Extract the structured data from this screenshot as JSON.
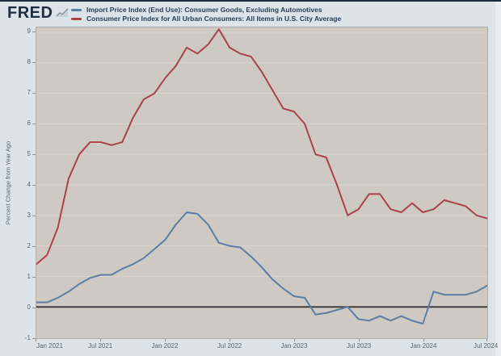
{
  "header": {
    "logo_text": "FRED",
    "logo_icon": "area-chart-icon"
  },
  "y_axis": {
    "title": "Percent Change from Year Ago"
  },
  "chart_data": {
    "type": "line",
    "title": "",
    "xlabel": "",
    "ylabel": "Percent Change from Year Ago",
    "frequency": "monthly",
    "x_start": "2021-01",
    "x_end": "2024-07",
    "x_tick_labels": [
      "Jan 2021",
      "Jul 2021",
      "Jan 2022",
      "Jul 2022",
      "Jan 2023",
      "Jul 2023",
      "Jan 2024",
      "Jul 2024"
    ],
    "ylim": [
      -1,
      9
    ],
    "y_ticks": [
      -1,
      0,
      1,
      2,
      3,
      4,
      5,
      6,
      7,
      8,
      9
    ],
    "grid": true,
    "zero_line": true,
    "legend_position": "top-left",
    "series": [
      {
        "name": "Import Price Index (End Use): Consumer Goods, Excluding Automotives",
        "color": "#5b7ea6",
        "values": [
          0.15,
          0.15,
          0.3,
          0.5,
          0.75,
          0.95,
          1.05,
          1.05,
          1.25,
          1.4,
          1.6,
          1.9,
          2.2,
          2.7,
          3.1,
          3.05,
          2.7,
          2.1,
          2.0,
          1.95,
          1.65,
          1.3,
          0.9,
          0.6,
          0.35,
          0.3,
          -0.25,
          -0.2,
          -0.1,
          0.0,
          -0.4,
          -0.45,
          -0.3,
          -0.45,
          -0.3,
          -0.45,
          -0.55,
          0.5,
          0.4,
          0.4,
          0.4,
          0.5,
          0.7
        ]
      },
      {
        "name": "Consumer Price Index for All Urban Consumers: All Items in U.S. City Average",
        "color": "#a8434c",
        "values": [
          1.4,
          1.7,
          2.6,
          4.2,
          5.0,
          5.4,
          5.4,
          5.3,
          5.4,
          6.2,
          6.8,
          7.0,
          7.5,
          7.9,
          8.5,
          8.3,
          8.6,
          9.1,
          8.5,
          8.3,
          8.2,
          7.7,
          7.1,
          6.5,
          6.4,
          6.0,
          5.0,
          4.9,
          4.0,
          3.0,
          3.2,
          3.7,
          3.7,
          3.2,
          3.1,
          3.4,
          3.1,
          3.2,
          3.5,
          3.4,
          3.3,
          3.0,
          2.9
        ]
      }
    ]
  },
  "colors": {
    "outer_background": "#dce3e9",
    "plot_background": "#cec9c3",
    "gridline": "#dad5d0",
    "zero_line": "#3f3f3f",
    "plot_border": "#b0ada8",
    "axis_text": "#5a646e",
    "legend_text": "#2a3f55",
    "logo": "#1e2d40",
    "logo_icon_gray": "#8b97a3",
    "import_line": "#5b7ea6",
    "cpi_line": "#a8434c"
  }
}
